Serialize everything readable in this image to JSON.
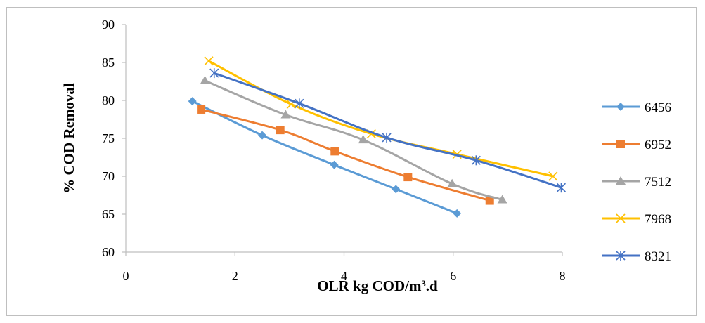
{
  "chart_data": {
    "type": "line",
    "title": "",
    "xlabel": "OLR kg COD/m³.d",
    "ylabel": "% COD Removal",
    "xlim": [
      0,
      8
    ],
    "ylim": [
      60,
      90
    ],
    "xticks": [
      0,
      2,
      4,
      6,
      8
    ],
    "yticks": [
      60,
      65,
      70,
      75,
      80,
      85,
      90
    ],
    "grid": false,
    "legend_position": "right",
    "series": [
      {
        "name": "6456",
        "color": "#5b9bd5",
        "marker": "diamond",
        "x": [
          1.22,
          2.5,
          3.82,
          4.95,
          6.07
        ],
        "y": [
          79.9,
          75.4,
          71.5,
          68.3,
          65.1
        ]
      },
      {
        "name": "6952",
        "color": "#ed7d31",
        "marker": "square",
        "x": [
          1.38,
          2.83,
          3.83,
          5.17,
          6.67
        ],
        "y": [
          78.8,
          76.1,
          73.3,
          69.9,
          66.8
        ]
      },
      {
        "name": "7512",
        "color": "#a5a5a5",
        "marker": "triangle",
        "x": [
          1.45,
          2.93,
          4.35,
          5.98,
          6.9
        ],
        "y": [
          82.6,
          78.1,
          74.8,
          69.0,
          66.9
        ]
      },
      {
        "name": "7968",
        "color": "#ffc000",
        "marker": "x",
        "x": [
          1.52,
          3.03,
          4.5,
          6.07,
          7.83
        ],
        "y": [
          85.2,
          79.5,
          75.6,
          72.9,
          70.0
        ]
      },
      {
        "name": "8321",
        "color": "#4472c4",
        "marker": "star",
        "x": [
          1.62,
          3.18,
          4.78,
          6.42,
          7.98
        ],
        "y": [
          83.6,
          79.6,
          75.1,
          72.1,
          68.5
        ]
      }
    ]
  }
}
